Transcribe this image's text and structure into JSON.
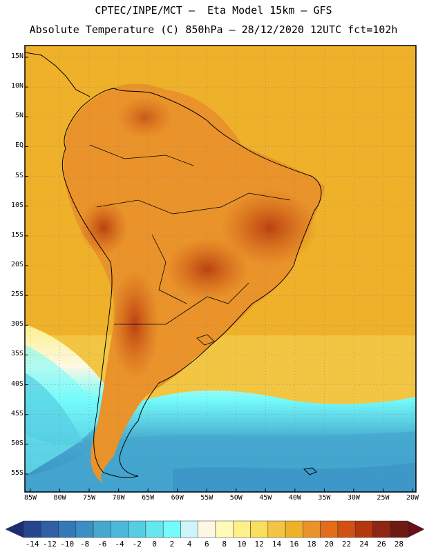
{
  "header": {
    "line1": "CPTEC/INPE/MCT –  Eta Model 15km – GFS",
    "line2": "Absolute Temperature (C) 850hPa – 28/12/2020 12UTC fct=102h"
  },
  "map": {
    "region": "South America",
    "lat_labels": [
      "15N",
      "10N",
      "5N",
      "EQ",
      "5S",
      "10S",
      "15S",
      "20S",
      "25S",
      "30S",
      "35S",
      "40S",
      "45S",
      "50S",
      "55S"
    ],
    "lon_labels": [
      "85W",
      "80W",
      "75W",
      "70W",
      "65W",
      "60W",
      "55W",
      "50W",
      "45W",
      "40W",
      "35W",
      "30W",
      "25W",
      "20W"
    ]
  },
  "colorbar": {
    "labels": [
      "-14",
      "-12",
      "-10",
      "-8",
      "-6",
      "-4",
      "-2",
      "0",
      "2",
      "4",
      "6",
      "8",
      "10",
      "12",
      "14",
      "16",
      "18",
      "20",
      "22",
      "24",
      "26",
      "28"
    ],
    "colors": [
      "#27448f",
      "#2f5fa6",
      "#3578b8",
      "#3a8fc4",
      "#45a8cf",
      "#4cb9da",
      "#55cde3",
      "#66e6ef",
      "#74fbfb",
      "#cdf5fb",
      "#fdf8e4",
      "#fffab8",
      "#fdf08a",
      "#f9df5e",
      "#f2c643",
      "#efb129",
      "#e9932a",
      "#e26d1a",
      "#d05212",
      "#b4380e",
      "#8e2612",
      "#6e1a12"
    ],
    "end_color_low": "#1b2e72",
    "end_color_high": "#6a0e17"
  }
}
